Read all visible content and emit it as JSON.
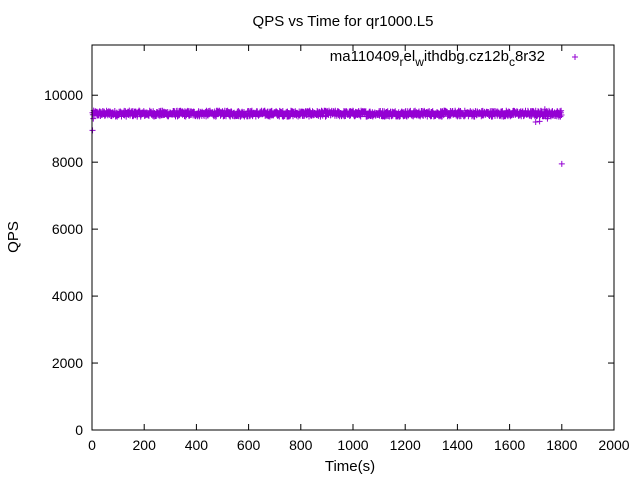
{
  "chart_data": {
    "type": "scatter",
    "title": "QPS vs Time for qr1000.L5",
    "xlabel": "Time(s)",
    "ylabel": "QPS",
    "xlim": [
      0,
      2000
    ],
    "ylim": [
      0,
      11500
    ],
    "x_ticks": [
      0,
      200,
      400,
      600,
      800,
      1000,
      1200,
      1400,
      1600,
      1800,
      2000
    ],
    "y_ticks": [
      0,
      2000,
      4000,
      6000,
      8000,
      10000
    ],
    "grid": false,
    "legend_position": "top-right",
    "legend": {
      "parts": [
        {
          "text": "ma110409",
          "shift": "base"
        },
        {
          "text": "r",
          "shift": "sub"
        },
        {
          "text": "el",
          "shift": "base"
        },
        {
          "text": "w",
          "shift": "sub"
        },
        {
          "text": "ithdbg.cz12b",
          "shift": "base"
        },
        {
          "text": "c",
          "shift": "sub"
        },
        {
          "text": "8r32",
          "shift": "base"
        }
      ]
    },
    "series": [
      {
        "color": "#9400d3",
        "marker": "plus",
        "band": {
          "x_start": 2,
          "x_end": 1800,
          "x_step": 1.5,
          "y_center": 9450,
          "y_spread": 90
        },
        "points": [
          [
            2,
            8950
          ],
          [
            5,
            9300
          ],
          [
            1700,
            9200
          ],
          [
            1715,
            9220
          ],
          [
            1735,
            9580
          ],
          [
            1745,
            9300
          ],
          [
            1762,
            9510
          ],
          [
            1780,
            9460
          ],
          [
            1800,
            7950
          ]
        ]
      }
    ]
  }
}
